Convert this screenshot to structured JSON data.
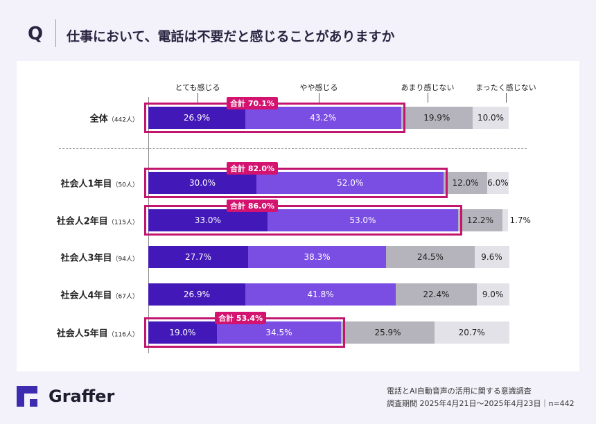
{
  "header": {
    "q_label": "Q",
    "title": "仕事において、電話は不要だと感じることがありますか"
  },
  "chart_data": {
    "type": "bar",
    "orientation": "horizontal-stacked-100",
    "title": "仕事において、電話は不要だと感じることがありますか",
    "legend": [
      "とても感じる",
      "やや感じる",
      "あまり感じない",
      "まったく感じない"
    ],
    "legend_placement": "top",
    "colors": [
      "#4318b8",
      "#7a4de3",
      "#b5b4bc",
      "#e3e2e8"
    ],
    "highlight_color": "#c4166e",
    "total_prefix": "合計",
    "categories": [
      {
        "name": "全体",
        "n": "（442人）",
        "values": [
          26.9,
          43.2,
          19.9,
          10.0
        ],
        "total": "70.1%",
        "highlight": true
      },
      {
        "name": "社会人1年目",
        "n": "（50人）",
        "values": [
          30.0,
          52.0,
          12.0,
          6.0
        ],
        "total": "82.0%",
        "highlight": true
      },
      {
        "name": "社会人2年目",
        "n": "（115人）",
        "values": [
          33.0,
          53.0,
          12.2,
          1.7
        ],
        "total": "86.0%",
        "highlight": true
      },
      {
        "name": "社会人3年目",
        "n": "（94人）",
        "values": [
          27.7,
          38.3,
          24.5,
          9.6
        ],
        "total": "",
        "highlight": false
      },
      {
        "name": "社会人4年目",
        "n": "（67人）",
        "values": [
          26.9,
          41.8,
          22.4,
          9.0
        ],
        "total": "",
        "highlight": false
      },
      {
        "name": "社会人5年目",
        "n": "（116人）",
        "values": [
          19.0,
          34.5,
          25.9,
          20.7
        ],
        "total": "53.4%",
        "highlight": true
      }
    ]
  },
  "footer": {
    "brand": "Graffer",
    "brand_color": "#3d2bb0",
    "survey": "電話とAI自動音声の活用に関する意識調査",
    "period": "調査期間 2025年4月21日〜2025年4月23日｜n=442"
  }
}
